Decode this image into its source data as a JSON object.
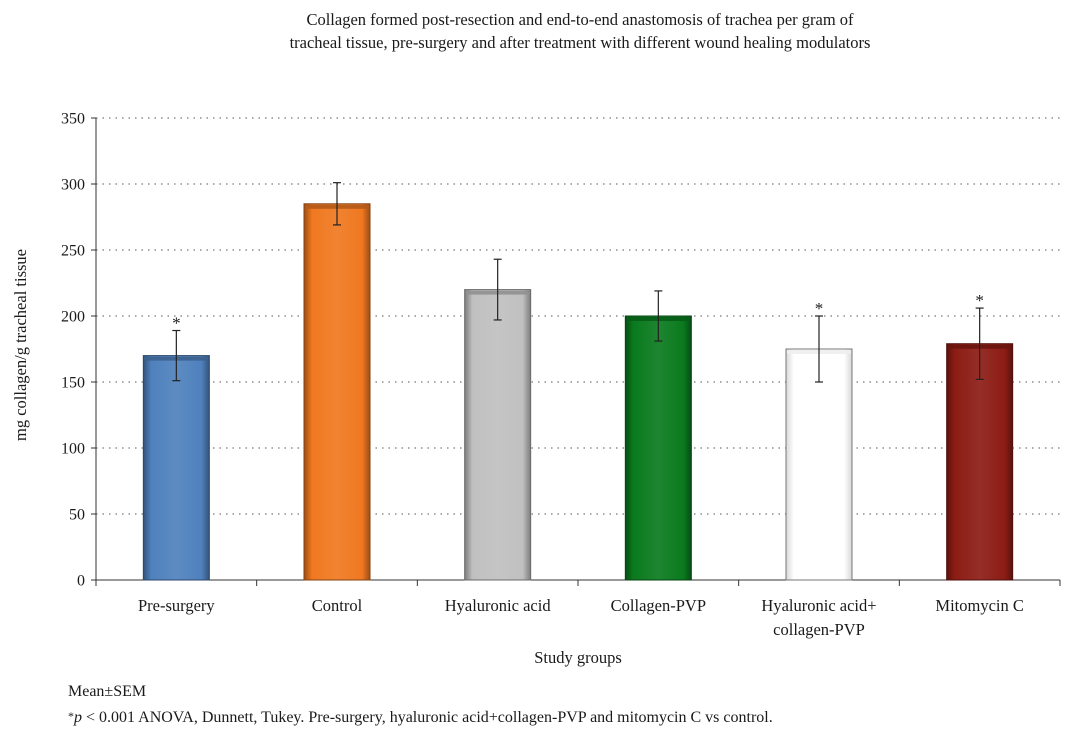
{
  "chart_data": {
    "type": "bar",
    "title_line1": "Collagen formed post-resection and end-to-end anastomosis of trachea per gram of",
    "title_line2": "tracheal tissue, pre-surgery and after treatment with different wound healing modulators",
    "xlabel": "Study groups",
    "ylabel": "mg collagen/g tracheal tissue",
    "ylim": [
      0,
      350
    ],
    "yticks": [
      0,
      50,
      100,
      150,
      200,
      250,
      300,
      350
    ],
    "grid": true,
    "categories": [
      [
        "Pre-surgery"
      ],
      [
        "Control"
      ],
      [
        "Hyaluronic acid"
      ],
      [
        "Collagen-PVP"
      ],
      [
        "Hyaluronic acid+",
        "collagen-PVP"
      ],
      [
        "Mitomycin C"
      ]
    ],
    "values": [
      170,
      285,
      220,
      200,
      175,
      179
    ],
    "error": [
      19,
      16,
      23,
      19,
      25,
      27
    ],
    "significant": [
      true,
      false,
      false,
      false,
      true,
      true
    ],
    "significance_marker": "*",
    "colors": [
      "#4f81bd",
      "#f07820",
      "#c0c0c0",
      "#0a7a1e",
      "#ffffff",
      "#8c1c14"
    ]
  },
  "notes": {
    "line1": "Mean±SEM",
    "line2_marker": "*",
    "line2_p": "p",
    "line2_rest": " < 0.001 ANOVA, Dunnett, Tukey. Pre-surgery, hyaluronic acid+collagen-PVP and mitomycin C vs control."
  }
}
